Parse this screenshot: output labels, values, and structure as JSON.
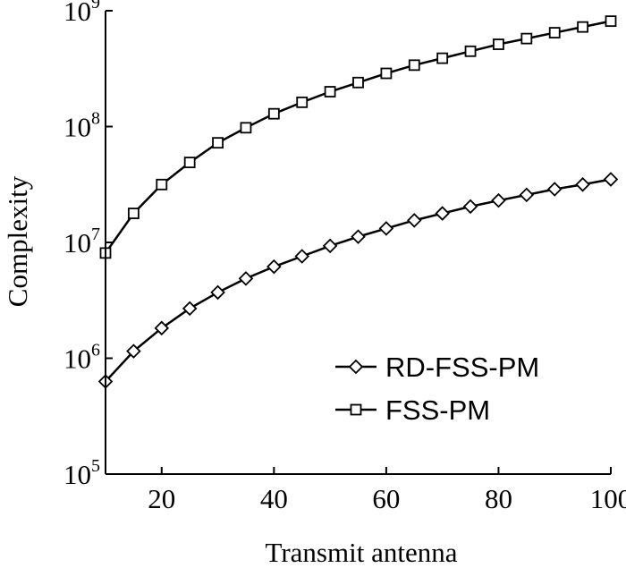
{
  "chart_data": {
    "type": "line",
    "xlabel": "Transmit antenna",
    "ylabel": "Complexity",
    "xlim": [
      10,
      100
    ],
    "ylim": [
      100000,
      1000000000
    ],
    "y_scale": "log",
    "x_ticks": [
      20,
      40,
      60,
      80,
      100
    ],
    "x_tick_labels": [
      "20",
      "40",
      "60",
      "80",
      "100"
    ],
    "y_ticks": [
      100000,
      1000000,
      10000000,
      100000000,
      1000000000
    ],
    "y_tick_labels": [
      {
        "base": "10",
        "exp": "5"
      },
      {
        "base": "10",
        "exp": "6"
      },
      {
        "base": "10",
        "exp": "7"
      },
      {
        "base": "10",
        "exp": "8"
      },
      {
        "base": "10",
        "exp": "9"
      }
    ],
    "grid": false,
    "legend_position": "bottom-right",
    "x": [
      10,
      15,
      20,
      25,
      30,
      35,
      40,
      45,
      50,
      55,
      60,
      65,
      70,
      75,
      80,
      85,
      90,
      95,
      100
    ],
    "series": [
      {
        "name": "RD-FSS-PM",
        "marker": "diamond",
        "color": "#000000",
        "values": [
          630000,
          1150000,
          1820000,
          2690000,
          3700000,
          4880000,
          6170000,
          7590000,
          9330000,
          11200000,
          13200000,
          15500000,
          17800000,
          20400000,
          23000000,
          25700000,
          28800000,
          31600000,
          35000000
        ]
      },
      {
        "name": "FSS-PM",
        "marker": "square",
        "color": "#000000",
        "values": [
          8100000,
          17800000,
          31600000,
          49000000,
          72400000,
          97700000,
          129000000,
          162000000,
          200000000,
          240000000,
          288000000,
          339000000,
          389000000,
          447000000,
          513000000,
          575000000,
          646000000,
          724000000,
          813000000
        ]
      }
    ]
  }
}
